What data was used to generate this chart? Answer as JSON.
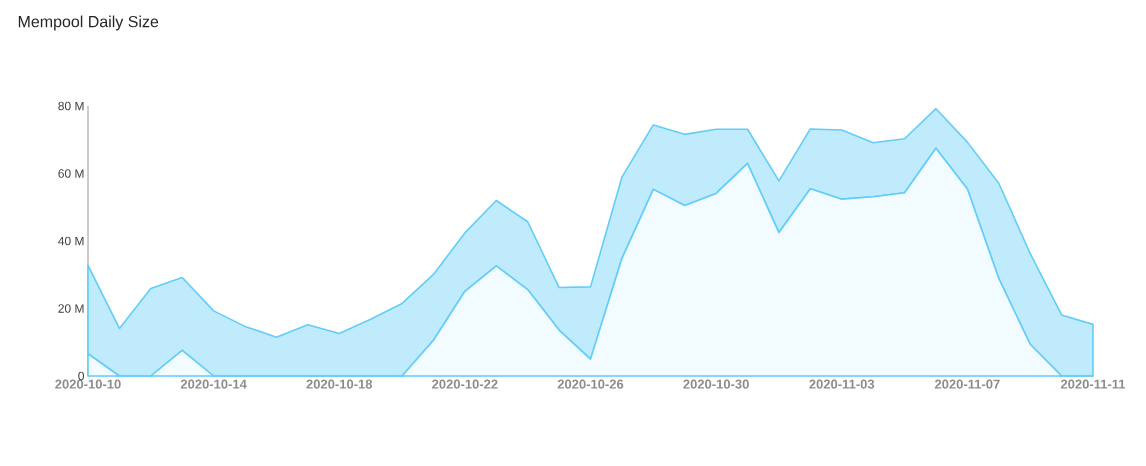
{
  "chart_data": {
    "type": "area",
    "title": "Mempool Daily Size",
    "stacked": true,
    "x": [
      "2020-10-10",
      "2020-10-11",
      "2020-10-12",
      "2020-10-13",
      "2020-10-14",
      "2020-10-15",
      "2020-10-16",
      "2020-10-17",
      "2020-10-18",
      "2020-10-19",
      "2020-10-20",
      "2020-10-21",
      "2020-10-22",
      "2020-10-23",
      "2020-10-24",
      "2020-10-25",
      "2020-10-26",
      "2020-10-27",
      "2020-10-28",
      "2020-10-29",
      "2020-10-30",
      "2020-10-31",
      "2020-11-01",
      "2020-11-02",
      "2020-11-03",
      "2020-11-04",
      "2020-11-05",
      "2020-11-06",
      "2020-11-07",
      "2020-11-08",
      "2020-11-09",
      "2020-11-10",
      "2020-11-11"
    ],
    "series": [
      {
        "color": "#62cdfa",
        "values": [
          6.6,
          0,
          0,
          7.6,
          0,
          0,
          0,
          0,
          0,
          0,
          0,
          10.6,
          25.1,
          32.6,
          25.6,
          13.6,
          5.0,
          34.8,
          55.3,
          50.5,
          54.1,
          63.0,
          42.5,
          55.5,
          52.4,
          53.1,
          54.3,
          67.5,
          55.4,
          28.9,
          9.4,
          0,
          0
        ]
      },
      {
        "color": "#62cdfa",
        "values": [
          26.2,
          14.1,
          25.9,
          21.6,
          19.3,
          14.7,
          11.5,
          15.2,
          12.6,
          16.8,
          21.5,
          19.5,
          17.3,
          19.4,
          20.1,
          12.6,
          21.4,
          24.1,
          19.1,
          21.1,
          19.0,
          10.1,
          15.3,
          17.7,
          20.5,
          16.0,
          16.0,
          11.7,
          13.9,
          28.2,
          26.9,
          18.1,
          15.3
        ]
      }
    ],
    "xlim": [
      "2020-10-10",
      "2020-11-11"
    ],
    "xticks": [
      "2020-10-10",
      "2020-10-14",
      "2020-10-18",
      "2020-10-22",
      "2020-10-26",
      "2020-10-30",
      "2020-11-03",
      "2020-11-07",
      "2020-11-11"
    ],
    "ylim": [
      0,
      80
    ],
    "yticks": [
      0,
      {
        "value": 20,
        "label": "20 M"
      },
      {
        "value": 40,
        "label": "40 M"
      },
      {
        "value": 60,
        "label": "60 M"
      },
      {
        "value": 80,
        "label": "80 M"
      }
    ],
    "grid": false
  }
}
